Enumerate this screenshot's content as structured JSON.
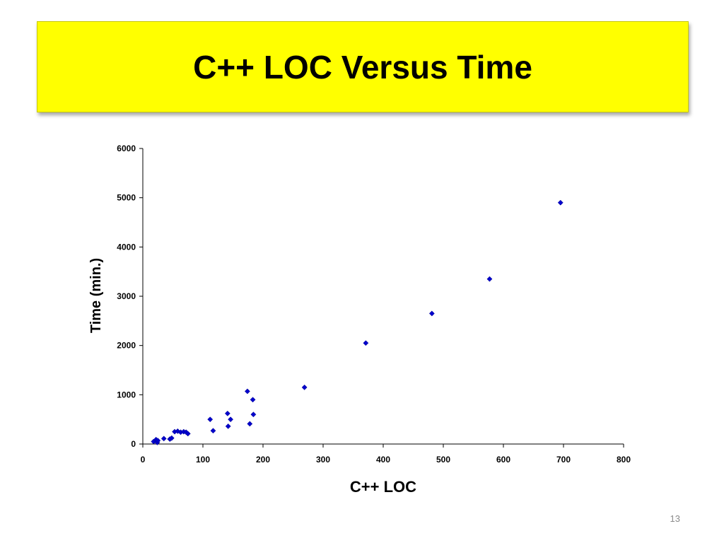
{
  "slide": {
    "title": "C++ LOC Versus Time",
    "number": "13",
    "title_bg": "#ffff00"
  },
  "chart_data": {
    "type": "scatter",
    "title": "",
    "xlabel": "C++  LOC",
    "ylabel": "Time (min.)",
    "xlim": [
      0,
      800
    ],
    "ylim": [
      0,
      6000
    ],
    "xticks": [
      0,
      100,
      200,
      300,
      400,
      500,
      600,
      700,
      800
    ],
    "yticks": [
      0,
      1000,
      2000,
      3000,
      4000,
      5000,
      6000
    ],
    "grid": false,
    "marker_color": "#0000cc",
    "points": [
      {
        "x": 18,
        "y": 50
      },
      {
        "x": 22,
        "y": 90
      },
      {
        "x": 24,
        "y": 30
      },
      {
        "x": 25,
        "y": 70
      },
      {
        "x": 35,
        "y": 110
      },
      {
        "x": 45,
        "y": 100
      },
      {
        "x": 48,
        "y": 120
      },
      {
        "x": 53,
        "y": 250
      },
      {
        "x": 58,
        "y": 260
      },
      {
        "x": 63,
        "y": 240
      },
      {
        "x": 68,
        "y": 250
      },
      {
        "x": 72,
        "y": 240
      },
      {
        "x": 75,
        "y": 210
      },
      {
        "x": 112,
        "y": 500
      },
      {
        "x": 117,
        "y": 270
      },
      {
        "x": 141,
        "y": 620
      },
      {
        "x": 142,
        "y": 360
      },
      {
        "x": 146,
        "y": 500
      },
      {
        "x": 174,
        "y": 1070
      },
      {
        "x": 178,
        "y": 410
      },
      {
        "x": 183,
        "y": 900
      },
      {
        "x": 184,
        "y": 600
      },
      {
        "x": 269,
        "y": 1150
      },
      {
        "x": 371,
        "y": 2050
      },
      {
        "x": 481,
        "y": 2650
      },
      {
        "x": 577,
        "y": 3350
      },
      {
        "x": 695,
        "y": 4900
      }
    ]
  }
}
